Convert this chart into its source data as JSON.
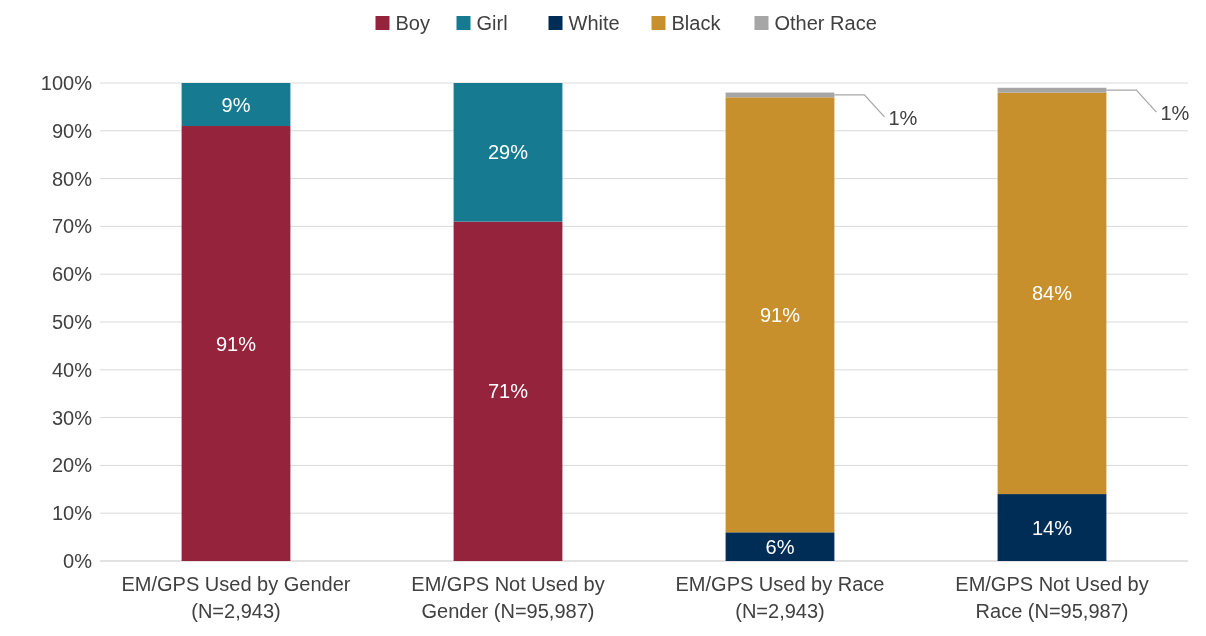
{
  "chart_data": {
    "type": "bar",
    "stacked": true,
    "categories": [
      "EM/GPS Used by Gender (N=2,943)",
      "EM/GPS Not Used by Gender (N=95,987)",
      "EM/GPS Used by Race (N=2,943)",
      "EM/GPS Not Used by Race (N=95,987)"
    ],
    "series": [
      {
        "name": "Boy",
        "color": "#95233c",
        "values": [
          91,
          71,
          null,
          null
        ],
        "value_labels": [
          "91%",
          "71%",
          null,
          null
        ]
      },
      {
        "name": "Girl",
        "color": "#167a91",
        "values": [
          9,
          29,
          null,
          null
        ],
        "value_labels": [
          "9%",
          "29%",
          null,
          null
        ]
      },
      {
        "name": "White",
        "color": "#002d56",
        "values": [
          null,
          null,
          6,
          14
        ],
        "value_labels": [
          null,
          null,
          "6%",
          "14%"
        ]
      },
      {
        "name": "Black",
        "color": "#c8902d",
        "values": [
          null,
          null,
          91,
          84
        ],
        "value_labels": [
          null,
          null,
          "91%",
          "84%"
        ]
      },
      {
        "name": "Other Race",
        "color": "#a6a6a6",
        "values": [
          null,
          null,
          1,
          1
        ],
        "value_labels": [
          null,
          null,
          "1%",
          "1%"
        ]
      }
    ],
    "ylim": [
      0,
      100
    ],
    "yticks": [
      {
        "value": 0,
        "label": "0%"
      },
      {
        "value": 10,
        "label": "10%"
      },
      {
        "value": 20,
        "label": "20%"
      },
      {
        "value": 30,
        "label": "30%"
      },
      {
        "value": 40,
        "label": "40%"
      },
      {
        "value": 50,
        "label": "50%"
      },
      {
        "value": 60,
        "label": "60%"
      },
      {
        "value": 70,
        "label": "70%"
      },
      {
        "value": 80,
        "label": "80%"
      },
      {
        "value": 90,
        "label": "90%"
      },
      {
        "value": 100,
        "label": "100%"
      }
    ],
    "grid": "y",
    "legend": "top"
  }
}
